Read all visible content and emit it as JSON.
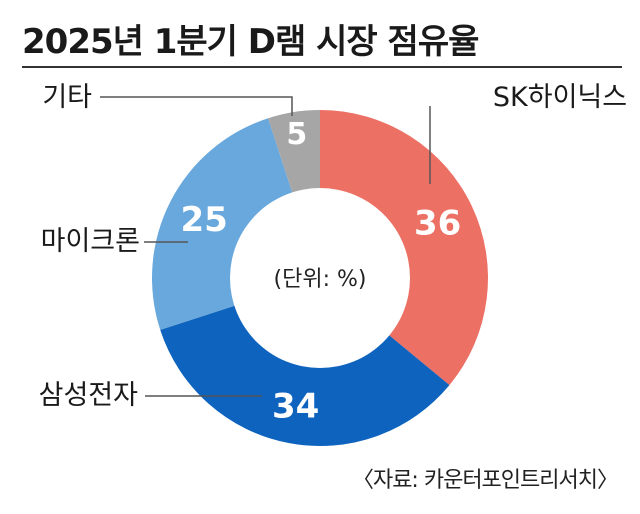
{
  "title": "2025년 1분기 D램 시장 점유율",
  "source": "〈자료: 카운터포인트리서치〉",
  "chart_data": {
    "type": "pie",
    "title": "2025년 1분기 D램 시장 점유율",
    "center_label": "(단위: %)",
    "slices": [
      {
        "label": "SK하이닉스",
        "value": 36,
        "color": "#ec7064"
      },
      {
        "label": "삼성전자",
        "value": 34,
        "color": "#0d63bd"
      },
      {
        "label": "마이크론",
        "value": 25,
        "color": "#68a8dd"
      },
      {
        "label": "기타",
        "value": 5,
        "color": "#a6a6a6"
      }
    ]
  }
}
